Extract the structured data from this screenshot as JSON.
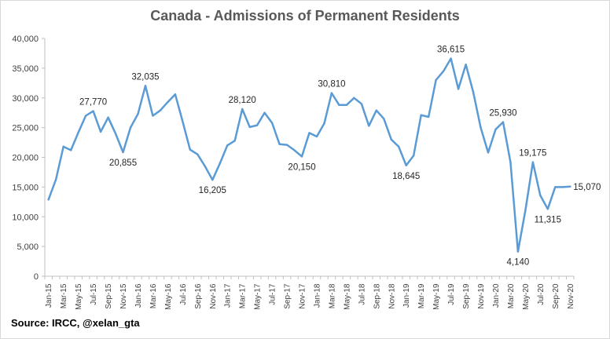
{
  "chart_data": {
    "type": "line",
    "title": "Canada - Admissions of Permanent Residents",
    "source": "Source: IRCC, @xelan_gta",
    "xlabel": "",
    "ylabel": "",
    "ylim": [
      0,
      40000
    ],
    "yticks": [
      0,
      5000,
      10000,
      15000,
      20000,
      25000,
      30000,
      35000,
      40000
    ],
    "ytick_labels": [
      "0",
      "5,000",
      "10,000",
      "15,000",
      "20,000",
      "25,000",
      "30,000",
      "35,000",
      "40,000"
    ],
    "grid": false,
    "line_color": "#5b9bd5",
    "x": [
      "Jan-15",
      "Feb-15",
      "Mar-15",
      "Apr-15",
      "May-15",
      "Jun-15",
      "Jul-15",
      "Aug-15",
      "Sep-15",
      "Oct-15",
      "Nov-15",
      "Dec-15",
      "Jan-16",
      "Feb-16",
      "Mar-16",
      "Apr-16",
      "May-16",
      "Jun-16",
      "Jul-16",
      "Aug-16",
      "Sep-16",
      "Oct-16",
      "Nov-16",
      "Dec-16",
      "Jan-17",
      "Feb-17",
      "Mar-17",
      "Apr-17",
      "May-17",
      "Jun-17",
      "Jul-17",
      "Aug-17",
      "Sep-17",
      "Oct-17",
      "Nov-17",
      "Dec-17",
      "Jan-18",
      "Feb-18",
      "Mar-18",
      "Apr-18",
      "May-18",
      "Jun-18",
      "Jul-18",
      "Aug-18",
      "Sep-18",
      "Oct-18",
      "Nov-18",
      "Dec-18",
      "Jan-19",
      "Feb-19",
      "Mar-19",
      "Apr-19",
      "May-19",
      "Jun-19",
      "Jul-19",
      "Aug-19",
      "Sep-19",
      "Oct-19",
      "Nov-19",
      "Dec-19",
      "Jan-20",
      "Feb-20",
      "Mar-20",
      "Apr-20",
      "May-20",
      "Jun-20",
      "Jul-20",
      "Aug-20",
      "Sep-20",
      "Oct-20",
      "Nov-20"
    ],
    "values": [
      12900,
      16300,
      21800,
      21200,
      24200,
      27000,
      27770,
      24300,
      26700,
      24000,
      20855,
      25000,
      27300,
      32035,
      27000,
      27900,
      29300,
      30600,
      26000,
      21300,
      20500,
      18500,
      16205,
      19000,
      22000,
      22800,
      28120,
      25100,
      25400,
      27500,
      25800,
      22200,
      22100,
      21200,
      20150,
      24100,
      23500,
      25700,
      30810,
      28800,
      28800,
      30000,
      29000,
      25300,
      27900,
      26500,
      23000,
      21800,
      18645,
      20300,
      27100,
      26800,
      33000,
      34500,
      36615,
      31500,
      35600,
      31000,
      25000,
      20800,
      24700,
      25930,
      19200,
      4140,
      11100,
      19175,
      13600,
      11315,
      15000,
      15000,
      15070
    ],
    "tick_labels_shown": [
      "Jan-15",
      "Mar-15",
      "May-15",
      "Jul-15",
      "Sep-15",
      "Nov-15",
      "Jan-16",
      "Mar-16",
      "May-16",
      "Jul-16",
      "Sep-16",
      "Nov-16",
      "Jan-17",
      "Mar-17",
      "May-17",
      "Jul-17",
      "Sep-17",
      "Nov-17",
      "Jan-18",
      "Mar-18",
      "May-18",
      "Jul-18",
      "Sep-18",
      "Nov-18",
      "Jan-19",
      "Mar-19",
      "May-19",
      "Jul-19",
      "Sep-19",
      "Nov-19",
      "Jan-20",
      "Mar-20",
      "May-20",
      "Jul-20",
      "Sep-20",
      "Nov-20"
    ],
    "annotations": [
      {
        "x": "Jul-15",
        "value": 27770,
        "label": "27,770",
        "position": "above"
      },
      {
        "x": "Nov-15",
        "value": 20855,
        "label": "20,855",
        "position": "below"
      },
      {
        "x": "Feb-16",
        "value": 32035,
        "label": "32,035",
        "position": "above"
      },
      {
        "x": "Nov-16",
        "value": 16205,
        "label": "16,205",
        "position": "below"
      },
      {
        "x": "Mar-17",
        "value": 28120,
        "label": "28,120",
        "position": "above"
      },
      {
        "x": "Nov-17",
        "value": 20150,
        "label": "20,150",
        "position": "below"
      },
      {
        "x": "Mar-18",
        "value": 30810,
        "label": "30,810",
        "position": "above"
      },
      {
        "x": "Jan-19",
        "value": 18645,
        "label": "18,645",
        "position": "below"
      },
      {
        "x": "Jul-19",
        "value": 36615,
        "label": "36,615",
        "position": "above"
      },
      {
        "x": "Feb-20",
        "value": 25930,
        "label": "25,930",
        "position": "above"
      },
      {
        "x": "Apr-20",
        "value": 4140,
        "label": "4,140",
        "position": "below"
      },
      {
        "x": "Jun-20",
        "value": 19175,
        "label": "19,175",
        "position": "above"
      },
      {
        "x": "Aug-20",
        "value": 11315,
        "label": "11,315",
        "position": "below"
      },
      {
        "x": "Nov-20",
        "value": 15070,
        "label": "15,070",
        "position": "right"
      }
    ]
  }
}
